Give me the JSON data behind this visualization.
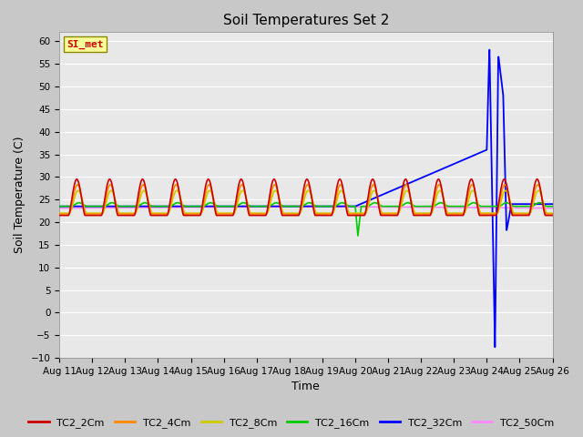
{
  "title": "Soil Temperatures Set 2",
  "xlabel": "Time",
  "ylabel": "Soil Temperature (C)",
  "ylim": [
    -10,
    62
  ],
  "yticks": [
    -10,
    -5,
    0,
    5,
    10,
    15,
    20,
    25,
    30,
    35,
    40,
    45,
    50,
    55,
    60
  ],
  "xtick_labels": [
    "Aug 11",
    "Aug 12",
    "Aug 13",
    "Aug 14",
    "Aug 15",
    "Aug 16",
    "Aug 17",
    "Aug 18",
    "Aug 19",
    "Aug 20",
    "Aug 21",
    "Aug 22",
    "Aug 23",
    "Aug 24",
    "Aug 25",
    "Aug 26"
  ],
  "legend_labels": [
    "TC2_2Cm",
    "TC2_4Cm",
    "TC2_8Cm",
    "TC2_16Cm",
    "TC2_32Cm",
    "TC2_50Cm"
  ],
  "legend_colors": [
    "#cc0000",
    "#ff8800",
    "#cccc00",
    "#00cc00",
    "#0000ff",
    "#ff88ff"
  ],
  "annotation_text": "SI_met",
  "annotation_color": "#cc0000",
  "annotation_bg": "#ffff99"
}
